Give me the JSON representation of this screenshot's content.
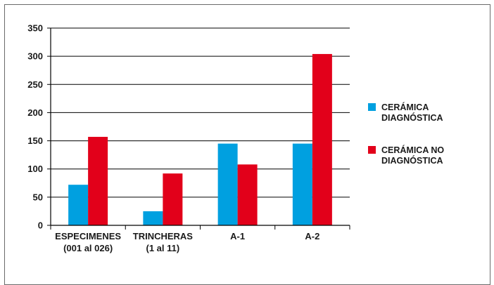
{
  "chart_data": {
    "type": "bar",
    "title": "",
    "xlabel": "",
    "ylabel": "",
    "ylim": [
      0,
      350
    ],
    "yticks": [
      0,
      50,
      100,
      150,
      200,
      250,
      300,
      350
    ],
    "grid": true,
    "legend_position": "right",
    "categories": [
      [
        "ESPECIMENES",
        "(001 al 026)"
      ],
      [
        "TRINCHERAS",
        "(1 al 11)"
      ],
      [
        "A-1"
      ],
      [
        "A-2"
      ]
    ],
    "series": [
      {
        "name": [
          "CERÁMICA",
          "DIAGNÓSTICA"
        ],
        "color": "#00a0e0",
        "values": [
          72,
          25,
          145,
          145
        ]
      },
      {
        "name": [
          "CERÁMICA NO",
          "DIAGNÓSTICA"
        ],
        "color": "#e2001a",
        "values": [
          157,
          92,
          108,
          304
        ]
      }
    ]
  }
}
